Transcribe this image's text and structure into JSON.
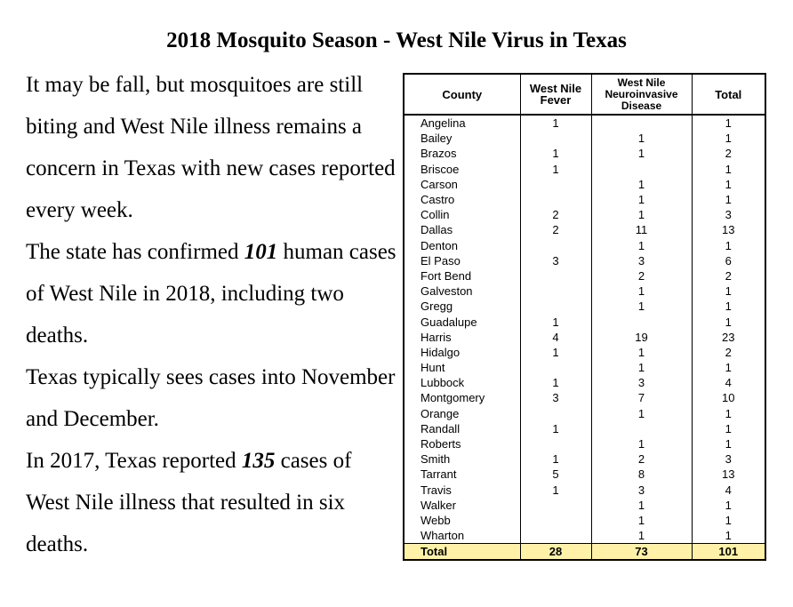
{
  "title": "2018 Mosquito Season - West Nile Virus in Texas",
  "paragraphs": {
    "p1": "It may be fall, but mosquitoes are still biting and West Nile illness remains a concern in Texas with new cases reported every week.",
    "p2_before": "The state has confirmed ",
    "p2_num": "101",
    "p2_after": " human cases of West Nile in 2018, including two deaths.",
    "p3": "Texas typically sees cases into November and December.",
    "p4_before": "In 2017, Texas reported ",
    "p4_num": "135",
    "p4_after": " cases of West Nile illness that resulted in six deaths."
  },
  "table": {
    "headers": {
      "county": "County",
      "fever": [
        "West Nile",
        "Fever"
      ],
      "neuro": [
        "West Nile",
        "Neuroinvasive",
        "Disease"
      ],
      "total": "Total"
    },
    "rows": [
      {
        "county": "Angelina",
        "fever": "1",
        "neuro": "",
        "total": "1"
      },
      {
        "county": "Bailey",
        "fever": "",
        "neuro": "1",
        "total": "1"
      },
      {
        "county": "Brazos",
        "fever": "1",
        "neuro": "1",
        "total": "2"
      },
      {
        "county": "Briscoe",
        "fever": "1",
        "neuro": "",
        "total": "1"
      },
      {
        "county": "Carson",
        "fever": "",
        "neuro": "1",
        "total": "1"
      },
      {
        "county": "Castro",
        "fever": "",
        "neuro": "1",
        "total": "1"
      },
      {
        "county": "Collin",
        "fever": "2",
        "neuro": "1",
        "total": "3"
      },
      {
        "county": "Dallas",
        "fever": "2",
        "neuro": "11",
        "total": "13"
      },
      {
        "county": "Denton",
        "fever": "",
        "neuro": "1",
        "total": "1"
      },
      {
        "county": "El Paso",
        "fever": "3",
        "neuro": "3",
        "total": "6"
      },
      {
        "county": "Fort Bend",
        "fever": "",
        "neuro": "2",
        "total": "2"
      },
      {
        "county": "Galveston",
        "fever": "",
        "neuro": "1",
        "total": "1"
      },
      {
        "county": "Gregg",
        "fever": "",
        "neuro": "1",
        "total": "1"
      },
      {
        "county": "Guadalupe",
        "fever": "1",
        "neuro": "",
        "total": "1"
      },
      {
        "county": "Harris",
        "fever": "4",
        "neuro": "19",
        "total": "23"
      },
      {
        "county": "Hidalgo",
        "fever": "1",
        "neuro": "1",
        "total": "2"
      },
      {
        "county": "Hunt",
        "fever": "",
        "neuro": "1",
        "total": "1"
      },
      {
        "county": "Lubbock",
        "fever": "1",
        "neuro": "3",
        "total": "4"
      },
      {
        "county": "Montgomery",
        "fever": "3",
        "neuro": "7",
        "total": "10"
      },
      {
        "county": "Orange",
        "fever": "",
        "neuro": "1",
        "total": "1"
      },
      {
        "county": "Randall",
        "fever": "1",
        "neuro": "",
        "total": "1"
      },
      {
        "county": "Roberts",
        "fever": "",
        "neuro": "1",
        "total": "1"
      },
      {
        "county": "Smith",
        "fever": "1",
        "neuro": "2",
        "total": "3"
      },
      {
        "county": "Tarrant",
        "fever": "5",
        "neuro": "8",
        "total": "13"
      },
      {
        "county": "Travis",
        "fever": "1",
        "neuro": "3",
        "total": "4"
      },
      {
        "county": "Walker",
        "fever": "",
        "neuro": "1",
        "total": "1"
      },
      {
        "county": "Webb",
        "fever": "",
        "neuro": "1",
        "total": "1"
      },
      {
        "county": "Wharton",
        "fever": "",
        "neuro": "1",
        "total": "1"
      }
    ],
    "total_row": {
      "county": "Total",
      "fever": "28",
      "neuro": "73",
      "total": "101"
    },
    "total_row_color": "#fff2a8"
  }
}
